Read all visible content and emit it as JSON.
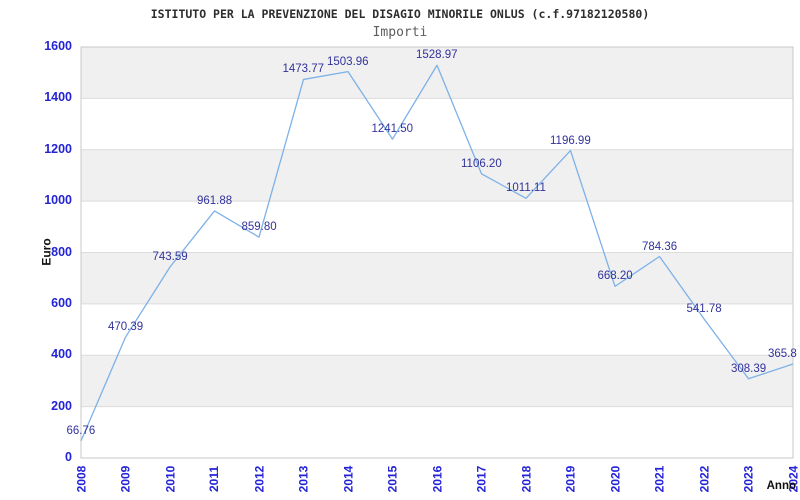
{
  "header": {
    "title": "ISTITUTO PER LA PREVENZIONE DEL DISAGIO MINORILE ONLUS (c.f.97182120580)",
    "subtitle": "Importi"
  },
  "chart_data": {
    "type": "line",
    "title": "ISTITUTO PER LA PREVENZIONE DEL DISAGIO MINORILE ONLUS (c.f.97182120580)",
    "subtitle": "Importi",
    "xlabel": "Anno",
    "ylabel": "Euro",
    "categories": [
      "2008",
      "2009",
      "2010",
      "2011",
      "2012",
      "2013",
      "2014",
      "2015",
      "2016",
      "2017",
      "2018",
      "2019",
      "2020",
      "2021",
      "2022",
      "2023",
      "2024"
    ],
    "values": [
      66.76,
      470.39,
      743.59,
      961.88,
      859.8,
      1473.77,
      1503.96,
      1241.5,
      1528.97,
      1106.2,
      1011.11,
      1196.99,
      668.2,
      784.36,
      541.78,
      308.39,
      365.8
    ],
    "point_labels": [
      "66.76",
      "470.39",
      "743.59",
      "961.88",
      "859.80",
      "1473.77",
      "1503.96",
      "1241.50",
      "1528.97",
      "1106.20",
      "1011.11",
      "1196.99",
      "668.20",
      "784.36",
      "541.78",
      "308.39",
      "365.8"
    ],
    "ylim": [
      0,
      1600
    ],
    "ytick_step": 200,
    "grid": true,
    "legend": "none",
    "colors": {
      "line": "#7db1e8",
      "tick_labels": "#2323d7",
      "point_labels": "#32329b",
      "band_even": "#ffffff",
      "band_odd": "#f0f0f0",
      "gridline": "#dcdcdc",
      "plot_border": "#c8c8c8",
      "axis_titles": "#111111"
    }
  }
}
